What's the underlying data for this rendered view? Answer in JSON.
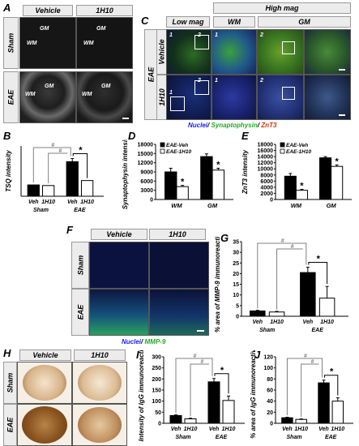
{
  "panels": {
    "A": {
      "letter": "A",
      "columns": [
        "Vehicle",
        "1H10"
      ],
      "rows": [
        "Sham",
        "EAE"
      ],
      "region_labels": {
        "wm": "WM",
        "gm": "GM"
      }
    },
    "C": {
      "letter": "C",
      "top_header": "High mag",
      "sub_headers": [
        "Low mag",
        "WM",
        "GM"
      ],
      "group_label": "EAE",
      "rows": [
        "Vehicle",
        "1H10"
      ],
      "box_numbers": [
        "1",
        "2"
      ],
      "legend": {
        "nuclei": "Nuclei",
        "syn": "Synaptophysin",
        "znt3": "ZnT3",
        "sep": "/"
      }
    },
    "F": {
      "letter": "F",
      "columns": [
        "Vehicle",
        "1H10"
      ],
      "rows": [
        "Sham",
        "EAE"
      ],
      "legend": {
        "nuclei": "Nuclei",
        "mmp": "MMP-9",
        "sep": "/"
      }
    },
    "H": {
      "letter": "H",
      "columns": [
        "Vehicle",
        "1H10"
      ],
      "rows": [
        "Sham",
        "EAE"
      ]
    }
  },
  "colors": {
    "veh_bar": "#000000",
    "h10_bar": "#ffffff",
    "sig_line": "#808080",
    "nuclei": "#1a1aff",
    "synaptophysin": "#33cc33",
    "znt3": "#cc3300",
    "mmp9": "#33cc33",
    "header_bg": "#ececec"
  },
  "chart_data": [
    {
      "panel": "B",
      "type": "bar",
      "xlabel": "",
      "ylabel": "TSQ intensity",
      "groups": [
        "Sham",
        "EAE"
      ],
      "categories": [
        "Veh",
        "1H10",
        "Veh",
        "1H10"
      ],
      "values": [
        18,
        17,
        55,
        25
      ],
      "errors": [
        0,
        0,
        5,
        0
      ],
      "ylim": [
        0,
        80
      ],
      "yticks": [],
      "significance": [
        "#",
        "#",
        "*"
      ]
    },
    {
      "panel": "D",
      "type": "bar",
      "xlabel": "",
      "ylabel": "Synaptophysin intensity",
      "categories": [
        "WM",
        "GM"
      ],
      "series": [
        {
          "name": "EAE-Veh",
          "values": [
            9000,
            14000
          ],
          "errors": [
            1200,
            900
          ]
        },
        {
          "name": "EAE-1H10",
          "values": [
            4200,
            9600
          ],
          "errors": [
            400,
            600
          ]
        }
      ],
      "ylim": [
        0,
        18000
      ],
      "yticks": [
        "0",
        "3000",
        "6000",
        "9000",
        "12000",
        "15000",
        "18000"
      ],
      "significance": [
        "*",
        "*"
      ]
    },
    {
      "panel": "E",
      "type": "bar",
      "xlabel": "",
      "ylabel": "ZnT3 intensity",
      "categories": [
        "WM",
        "GM"
      ],
      "series": [
        {
          "name": "EAE-Veh",
          "values": [
            7600,
            13600
          ],
          "errors": [
            900,
            400
          ]
        },
        {
          "name": "EAE-1H10",
          "values": [
            3000,
            10800
          ],
          "errors": [
            300,
            500
          ]
        }
      ],
      "ylim": [
        0,
        18000
      ],
      "yticks": [
        "0",
        "2000",
        "4000",
        "6000",
        "8000",
        "10000",
        "12000",
        "14000",
        "16000",
        "18000"
      ],
      "significance": [
        "*",
        "*"
      ]
    },
    {
      "panel": "G",
      "type": "bar",
      "xlabel": "",
      "ylabel": "% area of MMP-9 immunoreactivity",
      "groups": [
        "Sham",
        "EAE"
      ],
      "categories": [
        "Veh",
        "1H10",
        "Veh",
        "1H10"
      ],
      "values": [
        2.5,
        2.0,
        20.5,
        8.5
      ],
      "errors": [
        0.3,
        0.3,
        2.5,
        5.5
      ],
      "ylim": [
        0,
        35
      ],
      "yticks": [
        "0",
        "5",
        "10",
        "15",
        "20",
        "25",
        "30",
        "35"
      ],
      "significance": [
        "#",
        "#",
        "*"
      ]
    },
    {
      "panel": "I",
      "type": "bar",
      "xlabel": "",
      "ylabel": "Intensity of IgG immunoreactivity",
      "groups": [
        "Sham",
        "EAE"
      ],
      "categories": [
        "Veh",
        "1H10",
        "Veh",
        "1H10"
      ],
      "values": [
        35,
        20,
        187,
        103
      ],
      "errors": [
        3,
        3,
        15,
        20
      ],
      "ylim": [
        0,
        300
      ],
      "yticks": [
        "0",
        "50",
        "100",
        "150",
        "200",
        "250",
        "300"
      ],
      "significance": [
        "#",
        "#",
        "*"
      ]
    },
    {
      "panel": "J",
      "type": "bar",
      "xlabel": "",
      "ylabel": "% area of IgG immunoreactivity",
      "groups": [
        "Sham",
        "EAE"
      ],
      "categories": [
        "Veh",
        "1H10",
        "Veh",
        "1H10"
      ],
      "values": [
        10,
        7,
        73,
        40
      ],
      "errors": [
        1,
        1,
        5,
        6
      ],
      "ylim": [
        0,
        120
      ],
      "yticks": [
        "0",
        "20",
        "40",
        "60",
        "80",
        "100",
        "120"
      ],
      "significance": [
        "#",
        "#",
        "*"
      ]
    }
  ]
}
